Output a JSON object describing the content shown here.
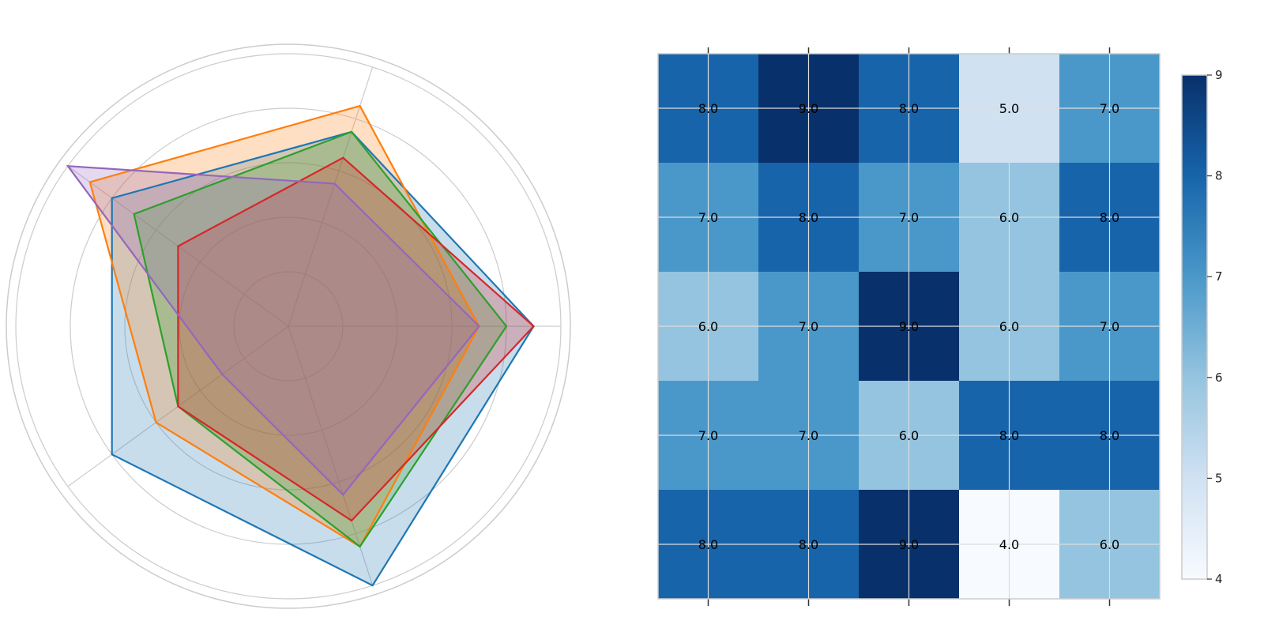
{
  "chart_data": [
    {
      "type": "radar",
      "title": "",
      "axes_count": 5,
      "rlim": [
        0,
        10
      ],
      "r_gridlines": [
        2,
        4,
        6,
        8,
        10
      ],
      "grid": true,
      "series": [
        {
          "color": "#1f77b4",
          "values": [
            9,
            7.5,
            8,
            8,
            10
          ]
        },
        {
          "color": "#ff7f0e",
          "values": [
            7,
            8.5,
            9,
            6,
            8.5
          ]
        },
        {
          "color": "#2ca02c",
          "values": [
            8,
            7.5,
            7,
            5,
            8.5
          ]
        },
        {
          "color": "#d62728",
          "values": [
            9,
            6.5,
            5,
            5,
            7.5
          ]
        },
        {
          "color": "#9467bd",
          "values": [
            7,
            5.5,
            10,
            3,
            6.5
          ]
        }
      ]
    },
    {
      "type": "heatmap",
      "title": "",
      "colormap": "Blues",
      "rows": [
        [
          8.0,
          9.0,
          8.0,
          5.0,
          7.0
        ],
        [
          7.0,
          8.0,
          7.0,
          6.0,
          8.0
        ],
        [
          6.0,
          7.0,
          9.0,
          6.0,
          7.0
        ],
        [
          7.0,
          7.0,
          6.0,
          8.0,
          8.0
        ],
        [
          8.0,
          8.0,
          9.0,
          4.0,
          6.0
        ]
      ],
      "colorbar": {
        "vmin": 4,
        "vmax": 9,
        "ticks": [
          "4",
          "5",
          "6",
          "7",
          "8",
          "9"
        ]
      },
      "palette": {
        "4": "#f7fbff",
        "5": "#d0e1f2",
        "6": "#94c4df",
        "7": "#4a98c9",
        "8": "#1764ab",
        "9": "#08306b"
      }
    }
  ]
}
